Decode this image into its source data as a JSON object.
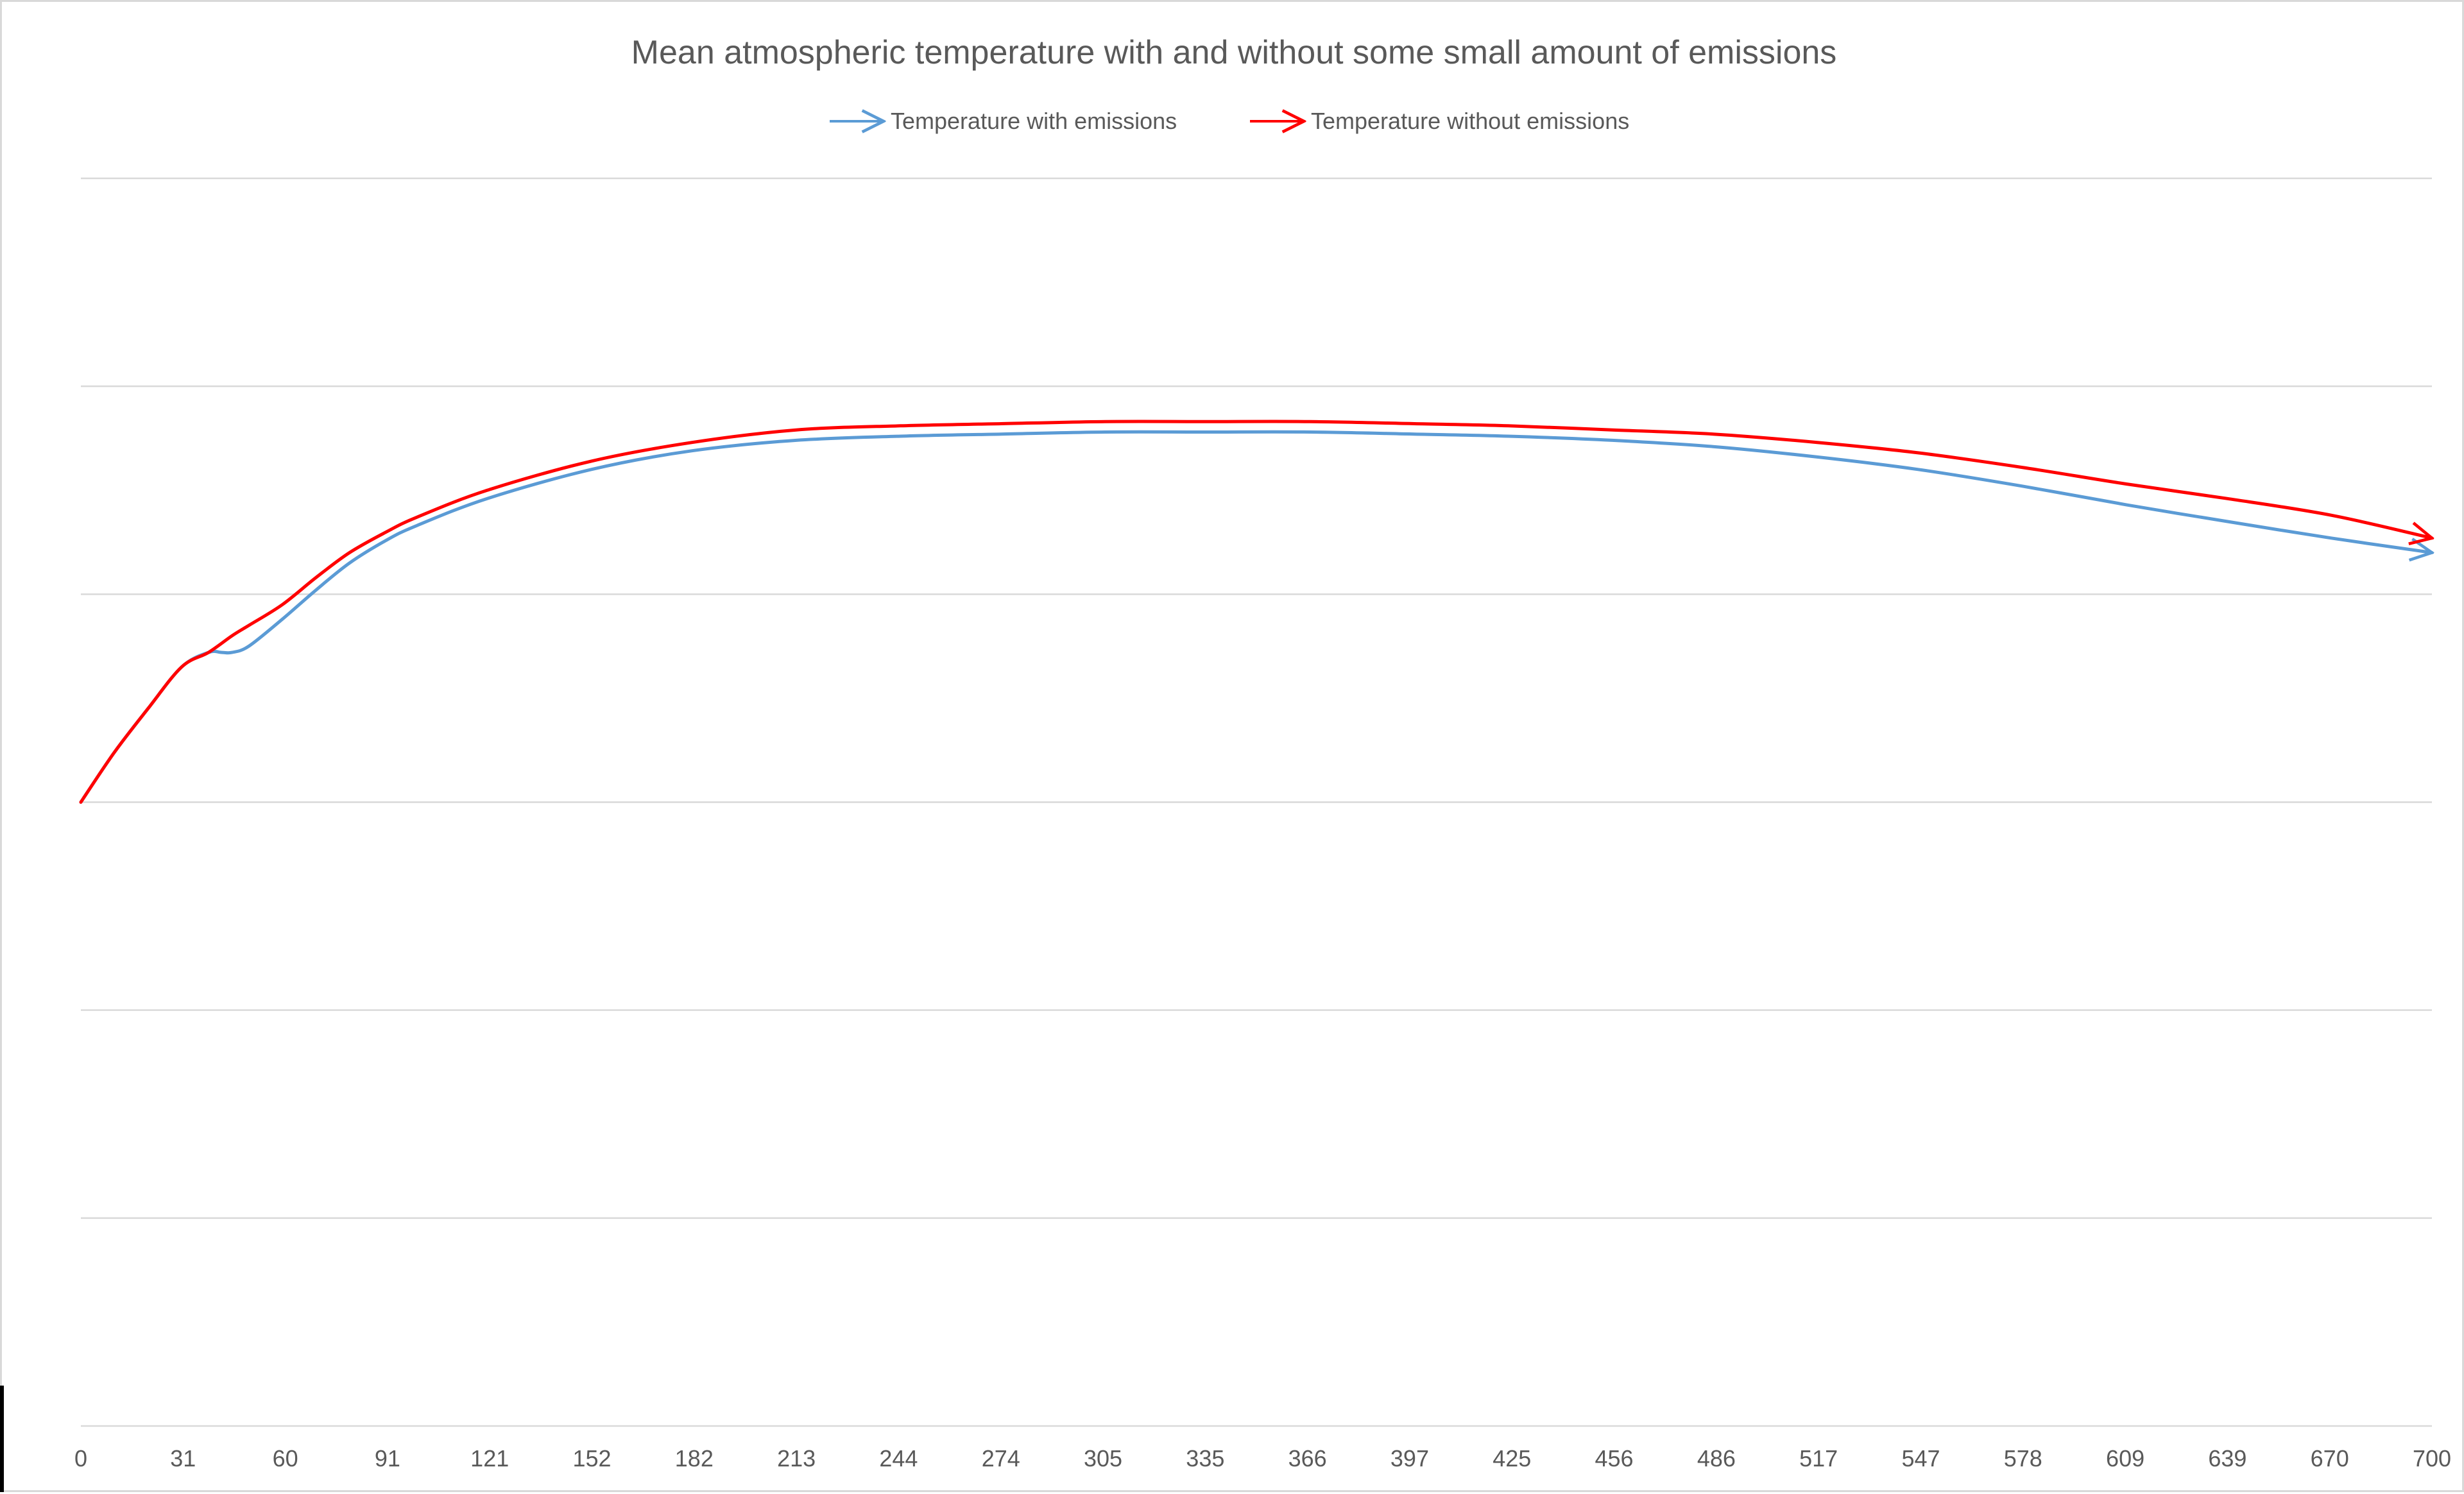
{
  "chart_data": {
    "type": "line",
    "title": "Mean atmospheric temperature with and without some small amount of emissions",
    "xlabel": "",
    "ylabel": "",
    "x_ticks": [
      0,
      31,
      60,
      91,
      121,
      152,
      182,
      213,
      244,
      274,
      305,
      335,
      366,
      397,
      425,
      456,
      486,
      517,
      547,
      578,
      609,
      639,
      670,
      700
    ],
    "xlim": [
      0,
      700
    ],
    "ylim": [
      0,
      6
    ],
    "y_gridlines": [
      1,
      2,
      3,
      4,
      5,
      6
    ],
    "y_ticks_shown": false,
    "legend": {
      "position": "top-center"
    },
    "series": [
      {
        "name": "Temperature with emissions",
        "color": "#5b9bd5",
        "marker": "arrow-end",
        "x": [
          0,
          10,
          20,
          30,
          38,
          42,
          45,
          50,
          60,
          70,
          80,
          91,
          100,
          121,
          152,
          182,
          213,
          244,
          274,
          305,
          335,
          366,
          397,
          425,
          456,
          486,
          517,
          547,
          578,
          609,
          639,
          670,
          700
        ],
        "y": [
          3.0,
          3.24,
          3.45,
          3.65,
          3.72,
          3.72,
          3.72,
          3.75,
          3.88,
          4.02,
          4.15,
          4.26,
          4.33,
          4.46,
          4.6,
          4.69,
          4.74,
          4.76,
          4.77,
          4.78,
          4.78,
          4.78,
          4.77,
          4.76,
          4.74,
          4.71,
          4.66,
          4.6,
          4.52,
          4.43,
          4.35,
          4.27,
          4.2
        ]
      },
      {
        "name": "Temperature without emissions",
        "color": "#ff0000",
        "marker": "arrow-end",
        "x": [
          0,
          10,
          20,
          30,
          38,
          45,
          50,
          60,
          70,
          80,
          91,
          100,
          121,
          152,
          182,
          213,
          244,
          274,
          305,
          335,
          366,
          397,
          425,
          456,
          486,
          517,
          547,
          578,
          609,
          639,
          670,
          700
        ],
        "y": [
          3.0,
          3.24,
          3.45,
          3.65,
          3.72,
          3.8,
          3.85,
          3.95,
          4.08,
          4.2,
          4.3,
          4.37,
          4.5,
          4.64,
          4.73,
          4.79,
          4.81,
          4.82,
          4.83,
          4.83,
          4.83,
          4.82,
          4.81,
          4.79,
          4.77,
          4.73,
          4.68,
          4.61,
          4.53,
          4.46,
          4.38,
          4.27
        ]
      }
    ]
  }
}
